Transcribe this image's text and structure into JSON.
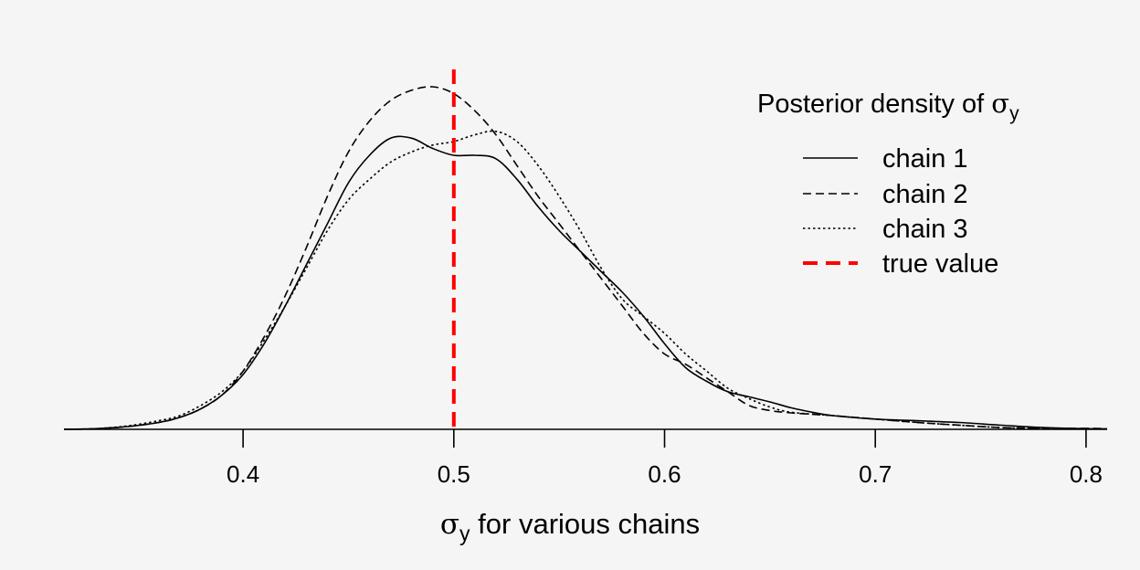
{
  "chart_data": {
    "type": "line",
    "title": "",
    "xlabel": {
      "symbol": "σ",
      "subscript": "y",
      "rest": " for various chains"
    },
    "ylabel": "",
    "xlim": [
      0.315,
      0.81
    ],
    "ylim": [
      0,
      1
    ],
    "x_ticks": [
      0.4,
      0.5,
      0.6,
      0.7,
      0.8
    ],
    "x_tick_labels": [
      "0.4",
      "0.5",
      "0.6",
      "0.7",
      "0.8"
    ],
    "grid": false,
    "legend": {
      "position": "top-right",
      "title": {
        "text": "Posterior density of ",
        "symbol": "σ",
        "subscript": "y"
      },
      "entries": [
        {
          "label": "chain 1",
          "style": "solid",
          "color": "#000000"
        },
        {
          "label": "chain 2",
          "style": "dashed",
          "color": "#000000"
        },
        {
          "label": "chain 3",
          "style": "dotted",
          "color": "#000000"
        },
        {
          "label": "true value",
          "style": "dashed",
          "color": "#ff0000"
        }
      ]
    },
    "true_value": 0.5,
    "true_value_color": "#ff0000",
    "series": [
      {
        "name": "chain 1",
        "style": "solid",
        "x": [
          0.315,
          0.33,
          0.345,
          0.36,
          0.37,
          0.38,
          0.39,
          0.4,
          0.41,
          0.42,
          0.43,
          0.44,
          0.45,
          0.46,
          0.47,
          0.48,
          0.49,
          0.5,
          0.51,
          0.52,
          0.53,
          0.54,
          0.55,
          0.56,
          0.57,
          0.58,
          0.59,
          0.6,
          0.61,
          0.62,
          0.63,
          0.64,
          0.65,
          0.66,
          0.67,
          0.68,
          0.7,
          0.72,
          0.74,
          0.76,
          0.78,
          0.8,
          0.81
        ],
        "y": [
          0.0,
          0.002,
          0.008,
          0.02,
          0.035,
          0.06,
          0.1,
          0.16,
          0.25,
          0.36,
          0.48,
          0.6,
          0.72,
          0.8,
          0.85,
          0.85,
          0.82,
          0.8,
          0.8,
          0.79,
          0.73,
          0.65,
          0.58,
          0.52,
          0.46,
          0.4,
          0.33,
          0.25,
          0.18,
          0.14,
          0.11,
          0.095,
          0.08,
          0.063,
          0.05,
          0.04,
          0.03,
          0.025,
          0.02,
          0.012,
          0.005,
          0.002,
          0.001
        ]
      },
      {
        "name": "chain 2",
        "style": "dashed",
        "x": [
          0.315,
          0.33,
          0.345,
          0.36,
          0.37,
          0.38,
          0.39,
          0.4,
          0.41,
          0.42,
          0.43,
          0.44,
          0.45,
          0.46,
          0.47,
          0.48,
          0.49,
          0.5,
          0.51,
          0.52,
          0.53,
          0.54,
          0.55,
          0.56,
          0.57,
          0.58,
          0.59,
          0.6,
          0.61,
          0.62,
          0.63,
          0.64,
          0.65,
          0.66,
          0.68,
          0.7,
          0.72,
          0.74,
          0.76,
          0.78,
          0.8,
          0.81
        ],
        "y": [
          0.0,
          0.002,
          0.008,
          0.02,
          0.035,
          0.06,
          0.1,
          0.17,
          0.27,
          0.39,
          0.53,
          0.68,
          0.81,
          0.9,
          0.96,
          0.99,
          1.0,
          0.98,
          0.93,
          0.86,
          0.77,
          0.68,
          0.6,
          0.52,
          0.44,
          0.36,
          0.28,
          0.22,
          0.19,
          0.15,
          0.11,
          0.07,
          0.055,
          0.048,
          0.04,
          0.03,
          0.02,
          0.012,
          0.005,
          0.003,
          0.003,
          0.002
        ]
      },
      {
        "name": "chain 3",
        "style": "dotted",
        "x": [
          0.315,
          0.33,
          0.345,
          0.36,
          0.37,
          0.38,
          0.39,
          0.4,
          0.41,
          0.42,
          0.43,
          0.44,
          0.45,
          0.46,
          0.47,
          0.48,
          0.49,
          0.5,
          0.51,
          0.52,
          0.53,
          0.54,
          0.55,
          0.56,
          0.57,
          0.58,
          0.59,
          0.6,
          0.61,
          0.62,
          0.63,
          0.64,
          0.65,
          0.66,
          0.68,
          0.7,
          0.72,
          0.74,
          0.76,
          0.78,
          0.8,
          0.81
        ],
        "y": [
          0.0,
          0.002,
          0.01,
          0.025,
          0.04,
          0.07,
          0.11,
          0.17,
          0.26,
          0.36,
          0.47,
          0.58,
          0.67,
          0.73,
          0.78,
          0.81,
          0.83,
          0.84,
          0.86,
          0.87,
          0.84,
          0.77,
          0.68,
          0.58,
          0.47,
          0.38,
          0.33,
          0.28,
          0.22,
          0.17,
          0.12,
          0.09,
          0.065,
          0.05,
          0.04,
          0.03,
          0.02,
          0.012,
          0.005,
          0.003,
          0.002,
          0.001
        ]
      }
    ]
  }
}
